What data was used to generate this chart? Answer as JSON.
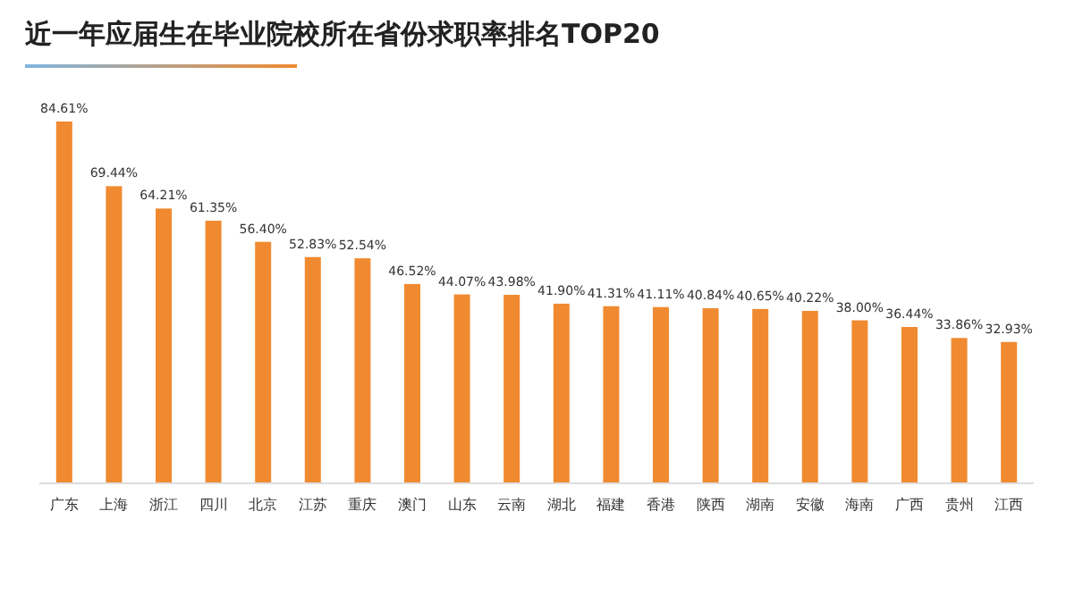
{
  "chart_data": {
    "type": "bar",
    "title": "近一年应届生在毕业院校所在省份求职率排名TOP20",
    "categories": [
      "广东",
      "上海",
      "浙江",
      "四川",
      "北京",
      "江苏",
      "重庆",
      "澳门",
      "山东",
      "云南",
      "湖北",
      "福建",
      "香港",
      "陕西",
      "湖南",
      "安徽",
      "海南",
      "广西",
      "贵州",
      "江西"
    ],
    "values": [
      84.61,
      69.44,
      64.21,
      61.35,
      56.4,
      52.83,
      52.54,
      46.52,
      44.07,
      43.98,
      41.9,
      41.31,
      41.11,
      40.84,
      40.65,
      40.22,
      38.0,
      36.44,
      33.86,
      32.93
    ],
    "value_labels": [
      "84.61%",
      "69.44%",
      "64.21%",
      "61.35%",
      "56.40%",
      "52.83%",
      "52.54%",
      "46.52%",
      "44.07%",
      "43.98%",
      "41.90%",
      "41.31%",
      "41.11%",
      "40.84%",
      "40.65%",
      "40.22%",
      "38.00%",
      "36.44%",
      "33.86%",
      "32.93%"
    ],
    "color": "#f08a30"
  }
}
